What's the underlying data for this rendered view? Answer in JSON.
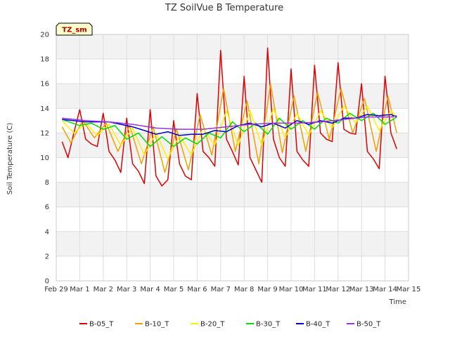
{
  "chart_data": {
    "type": "line",
    "title": "TZ SoilVue B Temperature",
    "xlabel": "Time",
    "ylabel": "Soil Temperature (C)",
    "ylim": [
      0,
      20
    ],
    "yticks": [
      0,
      2,
      4,
      6,
      8,
      10,
      12,
      14,
      16,
      18,
      20
    ],
    "xlim": [
      "2024-02-29",
      "2024-03-15"
    ],
    "xtick_labels": [
      "Feb 29",
      "Mar 1",
      "Mar 2",
      "Mar 3",
      "Mar 4",
      "Mar 5",
      "Mar 6",
      "Mar 7",
      "Mar 8",
      "Mar 9",
      "Mar 10",
      "Mar 11",
      "Mar 12",
      "Mar 13",
      "Mar 14",
      "Mar 15"
    ],
    "grid": true,
    "legend_position": "bottom",
    "annotation": "TZ_sm",
    "series": [
      {
        "name": "B-05_T",
        "color": "#dd0000",
        "x": [
          "2024-02-29 06:00",
          "2024-02-29 12:00",
          "2024-02-29 18:00",
          "2024-03-01 00:00",
          "2024-03-01 06:00",
          "2024-03-01 12:00",
          "2024-03-01 18:00",
          "2024-03-02 00:00",
          "2024-03-02 06:00",
          "2024-03-02 12:00",
          "2024-03-02 18:00",
          "2024-03-03 00:00",
          "2024-03-03 06:00",
          "2024-03-03 12:00",
          "2024-03-03 18:00",
          "2024-03-04 00:00",
          "2024-03-04 06:00",
          "2024-03-04 12:00",
          "2024-03-04 18:00",
          "2024-03-05 00:00",
          "2024-03-05 06:00",
          "2024-03-05 12:00",
          "2024-03-05 18:00",
          "2024-03-06 00:00",
          "2024-03-06 06:00",
          "2024-03-06 12:00",
          "2024-03-06 18:00",
          "2024-03-07 00:00",
          "2024-03-07 06:00",
          "2024-03-07 12:00",
          "2024-03-07 18:00",
          "2024-03-08 00:00",
          "2024-03-08 06:00",
          "2024-03-08 12:00",
          "2024-03-08 18:00",
          "2024-03-09 00:00",
          "2024-03-09 06:00",
          "2024-03-09 12:00",
          "2024-03-09 18:00",
          "2024-03-10 00:00",
          "2024-03-10 06:00",
          "2024-03-10 12:00",
          "2024-03-10 18:00",
          "2024-03-11 00:00",
          "2024-03-11 06:00",
          "2024-03-11 12:00",
          "2024-03-11 18:00",
          "2024-03-12 00:00",
          "2024-03-12 06:00",
          "2024-03-12 12:00",
          "2024-03-12 18:00",
          "2024-03-13 00:00",
          "2024-03-13 06:00",
          "2024-03-13 12:00",
          "2024-03-13 18:00",
          "2024-03-14 00:00",
          "2024-03-14 06:00",
          "2024-03-14 12:00"
        ],
        "values": [
          11.3,
          10.0,
          12.0,
          13.9,
          11.5,
          11.1,
          10.9,
          13.6,
          10.5,
          9.8,
          8.8,
          13.2,
          9.5,
          8.9,
          7.9,
          13.9,
          8.5,
          7.7,
          8.2,
          13.0,
          9.5,
          8.5,
          8.2,
          15.2,
          10.5,
          10.0,
          9.3,
          18.7,
          11.5,
          10.5,
          9.4,
          16.6,
          10.0,
          9.0,
          8.0,
          18.9,
          11.5,
          10.0,
          9.3,
          17.2,
          10.5,
          9.8,
          9.3,
          17.5,
          12.0,
          11.5,
          11.3,
          17.7,
          12.3,
          12.0,
          11.9,
          16.0,
          10.5,
          9.9,
          9.1,
          16.6,
          12.0,
          10.7
        ]
      },
      {
        "name": "B-10_T",
        "color": "#f0a000",
        "x": [
          "2024-02-29 06:00",
          "2024-02-29 15:00",
          "2024-03-01 03:00",
          "2024-03-01 15:00",
          "2024-03-02 03:00",
          "2024-03-02 15:00",
          "2024-03-03 03:00",
          "2024-03-03 15:00",
          "2024-03-04 03:00",
          "2024-03-04 15:00",
          "2024-03-05 03:00",
          "2024-03-05 15:00",
          "2024-03-06 03:00",
          "2024-03-06 15:00",
          "2024-03-07 03:00",
          "2024-03-07 15:00",
          "2024-03-08 03:00",
          "2024-03-08 15:00",
          "2024-03-09 03:00",
          "2024-03-09 15:00",
          "2024-03-10 03:00",
          "2024-03-10 15:00",
          "2024-03-11 03:00",
          "2024-03-11 15:00",
          "2024-03-12 03:00",
          "2024-03-12 15:00",
          "2024-03-13 03:00",
          "2024-03-13 15:00",
          "2024-03-14 03:00",
          "2024-03-14 12:00"
        ],
        "values": [
          12.5,
          11.2,
          13.0,
          11.6,
          12.8,
          10.5,
          12.6,
          9.5,
          12.5,
          8.8,
          12.3,
          9.0,
          13.5,
          10.2,
          15.6,
          10.5,
          14.6,
          9.5,
          16.0,
          10.4,
          15.0,
          10.5,
          15.3,
          11.5,
          15.6,
          12.0,
          14.8,
          10.5,
          15.0,
          12.0
        ]
      },
      {
        "name": "B-20_T",
        "color": "#ffee00",
        "x": [
          "2024-02-29 06:00",
          "2024-02-29 18:00",
          "2024-03-01 06:00",
          "2024-03-01 18:00",
          "2024-03-02 06:00",
          "2024-03-02 18:00",
          "2024-03-03 06:00",
          "2024-03-03 18:00",
          "2024-03-04 06:00",
          "2024-03-04 18:00",
          "2024-03-05 06:00",
          "2024-03-05 18:00",
          "2024-03-06 06:00",
          "2024-03-06 18:00",
          "2024-03-07 06:00",
          "2024-03-07 18:00",
          "2024-03-08 06:00",
          "2024-03-08 18:00",
          "2024-03-09 06:00",
          "2024-03-09 18:00",
          "2024-03-10 06:00",
          "2024-03-10 18:00",
          "2024-03-11 06:00",
          "2024-03-11 18:00",
          "2024-03-12 06:00",
          "2024-03-12 18:00",
          "2024-03-13 06:00",
          "2024-03-13 18:00",
          "2024-03-14 06:00",
          "2024-03-14 12:00"
        ],
        "values": [
          13.0,
          12.0,
          12.8,
          11.8,
          12.7,
          11.0,
          12.4,
          10.2,
          12.0,
          9.9,
          11.8,
          10.2,
          12.4,
          11.0,
          13.8,
          11.0,
          13.8,
          11.0,
          14.0,
          11.6,
          13.6,
          11.8,
          13.8,
          12.4,
          14.2,
          12.8,
          14.2,
          12.2,
          13.8,
          13.3
        ]
      },
      {
        "name": "B-30_T",
        "color": "#00dd00",
        "x": [
          "2024-02-29 06:00",
          "2024-03-01 00:00",
          "2024-03-01 12:00",
          "2024-03-02 00:00",
          "2024-03-02 12:00",
          "2024-03-03 00:00",
          "2024-03-03 12:00",
          "2024-03-04 00:00",
          "2024-03-04 12:00",
          "2024-03-05 00:00",
          "2024-03-05 12:00",
          "2024-03-06 00:00",
          "2024-03-06 12:00",
          "2024-03-07 00:00",
          "2024-03-07 12:00",
          "2024-03-08 00:00",
          "2024-03-08 12:00",
          "2024-03-09 00:00",
          "2024-03-09 12:00",
          "2024-03-10 00:00",
          "2024-03-10 12:00",
          "2024-03-11 00:00",
          "2024-03-11 12:00",
          "2024-03-12 00:00",
          "2024-03-12 12:00",
          "2024-03-13 00:00",
          "2024-03-13 12:00",
          "2024-03-14 00:00",
          "2024-03-14 12:00"
        ],
        "values": [
          13.1,
          12.6,
          12.8,
          12.3,
          12.6,
          11.5,
          12.0,
          10.9,
          11.7,
          10.9,
          11.6,
          11.1,
          12.0,
          11.6,
          12.9,
          12.1,
          12.8,
          11.9,
          13.2,
          12.3,
          13.0,
          12.3,
          13.2,
          12.8,
          13.6,
          13.0,
          13.6,
          12.7,
          13.3
        ]
      },
      {
        "name": "B-40_T",
        "color": "#0000cc",
        "x": [
          "2024-02-29 06:00",
          "2024-03-01 06:00",
          "2024-03-02 06:00",
          "2024-03-02 18:00",
          "2024-03-03 06:00",
          "2024-03-03 18:00",
          "2024-03-04 06:00",
          "2024-03-04 18:00",
          "2024-03-05 06:00",
          "2024-03-05 18:00",
          "2024-03-06 06:00",
          "2024-03-06 18:00",
          "2024-03-07 06:00",
          "2024-03-07 18:00",
          "2024-03-08 06:00",
          "2024-03-08 18:00",
          "2024-03-09 06:00",
          "2024-03-09 18:00",
          "2024-03-10 06:00",
          "2024-03-10 18:00",
          "2024-03-11 06:00",
          "2024-03-11 18:00",
          "2024-03-12 06:00",
          "2024-03-12 18:00",
          "2024-03-13 06:00",
          "2024-03-13 18:00",
          "2024-03-14 06:00",
          "2024-03-14 12:00"
        ],
        "values": [
          13.1,
          12.9,
          12.9,
          12.7,
          12.5,
          12.2,
          11.9,
          12.1,
          11.8,
          11.9,
          11.9,
          12.2,
          12.1,
          12.6,
          12.8,
          12.5,
          12.8,
          12.4,
          13.0,
          12.7,
          13.0,
          12.8,
          13.2,
          13.2,
          13.5,
          13.4,
          13.5,
          13.3
        ]
      },
      {
        "name": "B-50_T",
        "color": "#9933dd",
        "x": [
          "2024-02-29 06:00",
          "2024-03-01 06:00",
          "2024-03-02 06:00",
          "2024-03-03 06:00",
          "2024-03-04 06:00",
          "2024-03-05 06:00",
          "2024-03-06 06:00",
          "2024-03-07 06:00",
          "2024-03-08 06:00",
          "2024-03-09 06:00",
          "2024-03-10 06:00",
          "2024-03-11 06:00",
          "2024-03-12 06:00",
          "2024-03-13 06:00",
          "2024-03-14 06:00",
          "2024-03-14 12:00"
        ],
        "values": [
          13.2,
          13.0,
          12.9,
          12.7,
          12.4,
          12.3,
          12.3,
          12.5,
          12.7,
          12.8,
          12.8,
          12.9,
          13.1,
          13.3,
          13.3,
          13.4
        ]
      }
    ]
  }
}
